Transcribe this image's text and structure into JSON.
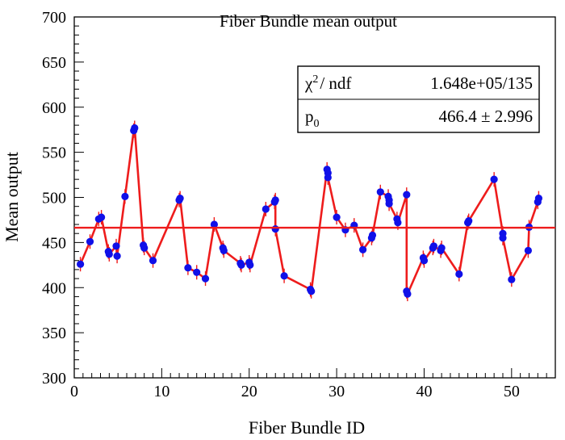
{
  "chart_data": {
    "type": "scatter",
    "title": "Fiber Bundle mean output",
    "xlabel": "Fiber Bundle ID",
    "ylabel": "Mean output",
    "xlim": [
      0,
      55
    ],
    "ylim": [
      300,
      700
    ],
    "x_ticks": [
      0,
      10,
      20,
      30,
      40,
      50
    ],
    "y_ticks": [
      300,
      350,
      400,
      450,
      500,
      550,
      600,
      650,
      700
    ],
    "grid": false,
    "series": [
      {
        "points": [
          {
            "x": 0.7,
            "y": 426
          },
          {
            "x": 1.8,
            "y": 451
          },
          {
            "x": 2.8,
            "y": 476
          },
          {
            "x": 3.1,
            "y": 478
          },
          {
            "x": 3.9,
            "y": 440
          },
          {
            "x": 4.0,
            "y": 437
          },
          {
            "x": 4.8,
            "y": 446
          },
          {
            "x": 4.9,
            "y": 435
          },
          {
            "x": 5.8,
            "y": 501
          },
          {
            "x": 6.8,
            "y": 574
          },
          {
            "x": 6.9,
            "y": 577
          },
          {
            "x": 7.9,
            "y": 447
          },
          {
            "x": 8.0,
            "y": 444
          },
          {
            "x": 9.0,
            "y": 430
          },
          {
            "x": 12.0,
            "y": 497
          },
          {
            "x": 12.1,
            "y": 499
          },
          {
            "x": 13.0,
            "y": 422
          },
          {
            "x": 14.0,
            "y": 417
          },
          {
            "x": 15.0,
            "y": 410
          },
          {
            "x": 16.0,
            "y": 470
          },
          {
            "x": 17.0,
            "y": 444
          },
          {
            "x": 17.1,
            "y": 441
          },
          {
            "x": 19.0,
            "y": 427
          },
          {
            "x": 19.1,
            "y": 425
          },
          {
            "x": 20.0,
            "y": 428
          },
          {
            "x": 20.1,
            "y": 425
          },
          {
            "x": 21.9,
            "y": 487
          },
          {
            "x": 22.9,
            "y": 495
          },
          {
            "x": 23.0,
            "y": 497
          },
          {
            "x": 23.0,
            "y": 465
          },
          {
            "x": 24.0,
            "y": 413
          },
          {
            "x": 27.0,
            "y": 398
          },
          {
            "x": 27.1,
            "y": 396
          },
          {
            "x": 28.9,
            "y": 531
          },
          {
            "x": 29.0,
            "y": 527
          },
          {
            "x": 29.0,
            "y": 522
          },
          {
            "x": 30.0,
            "y": 478
          },
          {
            "x": 31.0,
            "y": 464
          },
          {
            "x": 32.0,
            "y": 469
          },
          {
            "x": 33.0,
            "y": 442
          },
          {
            "x": 34.0,
            "y": 455
          },
          {
            "x": 34.1,
            "y": 458
          },
          {
            "x": 35.0,
            "y": 506
          },
          {
            "x": 35.9,
            "y": 501
          },
          {
            "x": 36.0,
            "y": 497
          },
          {
            "x": 36.0,
            "y": 493
          },
          {
            "x": 36.9,
            "y": 476
          },
          {
            "x": 37.0,
            "y": 472
          },
          {
            "x": 38.0,
            "y": 503
          },
          {
            "x": 38.0,
            "y": 396
          },
          {
            "x": 38.1,
            "y": 393
          },
          {
            "x": 39.9,
            "y": 433
          },
          {
            "x": 40.0,
            "y": 430
          },
          {
            "x": 41.0,
            "y": 444
          },
          {
            "x": 41.1,
            "y": 446
          },
          {
            "x": 41.9,
            "y": 441
          },
          {
            "x": 42.0,
            "y": 444
          },
          {
            "x": 44.0,
            "y": 415
          },
          {
            "x": 45.0,
            "y": 472
          },
          {
            "x": 45.1,
            "y": 474
          },
          {
            "x": 48.0,
            "y": 520
          },
          {
            "x": 49.0,
            "y": 460
          },
          {
            "x": 49.0,
            "y": 455
          },
          {
            "x": 50.0,
            "y": 409
          },
          {
            "x": 51.9,
            "y": 441
          },
          {
            "x": 52.0,
            "y": 467
          },
          {
            "x": 53.0,
            "y": 495
          },
          {
            "x": 53.1,
            "y": 499
          }
        ],
        "marker_color": "#1010e8",
        "line_color": "#ee1c1c"
      }
    ],
    "fit": {
      "function": "p0",
      "value": 466.4,
      "line_color": "#ee1c1c"
    },
    "stats_box": {
      "placement": "top-right",
      "rows": [
        {
          "label_symbol": "χ",
          "label_sup": "2",
          "label_rest": "/ ndf",
          "value": "1.648e+05/135"
        },
        {
          "label_symbol": "p",
          "label_sub": "0",
          "label_rest": "",
          "value": "466.4 ± 2.996"
        }
      ]
    }
  }
}
